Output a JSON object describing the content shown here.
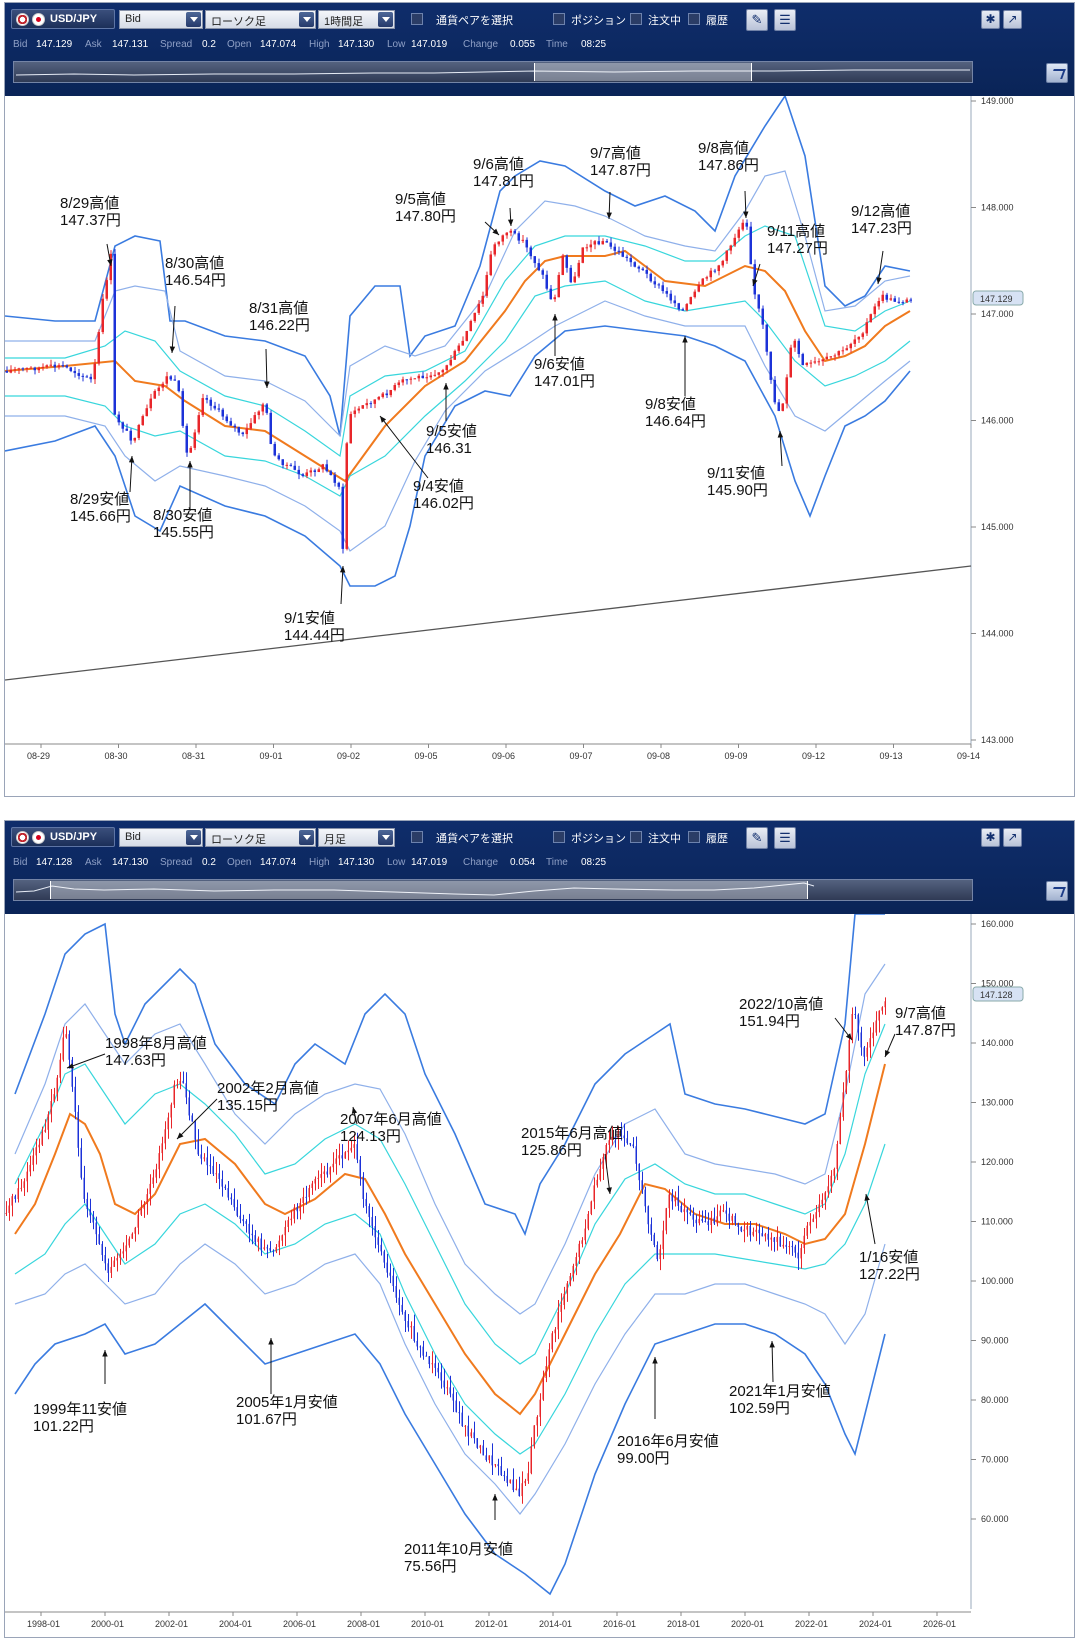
{
  "panels": [
    {
      "id": "hourly",
      "toolbar": {
        "symbol": "USD/JPY",
        "price_type": "Bid",
        "chart_type": "ローソク足",
        "timeframe": "1時間足",
        "pair_select_label": "通貨ペアを選択",
        "position_label": "ポジション",
        "orders_label": "注文中",
        "history_label": "履歴",
        "settings_icon": "gear-icon",
        "expand_icon": "expand-icon"
      },
      "quote": {
        "bid_label": "Bid",
        "bid": "147.129",
        "ask_label": "Ask",
        "ask": "147.131",
        "spread_label": "Spread",
        "spread": "0.2",
        "open_label": "Open",
        "open": "147.074",
        "high_label": "High",
        "high": "147.130",
        "low_label": "Low",
        "low": "147.019",
        "change_label": "Change",
        "change": "0.055",
        "time_label": "Time",
        "time": "08:25"
      },
      "price_tag": "147.129",
      "chart_data": {
        "type": "candlestick",
        "y_ticks": [
          "149.000",
          "148.000",
          "147.000",
          "146.000",
          "145.000",
          "144.000",
          "143.000"
        ],
        "x_ticks": [
          "08-29",
          "08-30",
          "08-31",
          "09-01",
          "09-02",
          "09-05",
          "09-06",
          "09-07",
          "09-08",
          "09-09",
          "09-12",
          "09-13",
          "09-14"
        ],
        "annotations": [
          {
            "lines": [
              "8/29高値",
              "147.37円"
            ]
          },
          {
            "lines": [
              "8/30高値",
              "146.54円"
            ]
          },
          {
            "lines": [
              "8/31高値",
              "146.22円"
            ]
          },
          {
            "lines": [
              "9/5高値",
              "147.80円"
            ]
          },
          {
            "lines": [
              "9/6高値",
              "147.81円"
            ]
          },
          {
            "lines": [
              "9/7高値",
              "147.87円"
            ]
          },
          {
            "lines": [
              "9/8高値",
              "147.86円"
            ]
          },
          {
            "lines": [
              "9/11高値",
              "147.27円"
            ]
          },
          {
            "lines": [
              "9/12高値",
              "147.23円"
            ]
          },
          {
            "lines": [
              "8/29安値",
              "145.66円"
            ]
          },
          {
            "lines": [
              "8/30安値",
              "145.55円"
            ]
          },
          {
            "lines": [
              "9/1安値",
              "144.44円"
            ]
          },
          {
            "lines": [
              "9/4安値",
              "146.02円"
            ]
          },
          {
            "lines": [
              "9/5安値",
              "146.31"
            ]
          },
          {
            "lines": [
              "9/6安値",
              "147.01円"
            ]
          },
          {
            "lines": [
              "9/8安値",
              "146.64円"
            ]
          },
          {
            "lines": [
              "9/11安値",
              "145.90円"
            ]
          }
        ],
        "colors": {
          "up": "#e8262a",
          "down": "#1c32d8",
          "ma": "#f07a1e",
          "band_outer": "#3a7be0",
          "band_mid": "#8fb0ea",
          "band_inner": "#38d6dc",
          "trendline": "#555555"
        }
      }
    },
    {
      "id": "monthly",
      "toolbar": {
        "symbol": "USD/JPY",
        "price_type": "Bid",
        "chart_type": "ローソク足",
        "timeframe": "月足",
        "pair_select_label": "通貨ペアを選択",
        "position_label": "ポジション",
        "orders_label": "注文中",
        "history_label": "履歴",
        "settings_icon": "gear-icon",
        "expand_icon": "expand-icon"
      },
      "quote": {
        "bid_label": "Bid",
        "bid": "147.128",
        "ask_label": "Ask",
        "ask": "147.130",
        "spread_label": "Spread",
        "spread": "0.2",
        "open_label": "Open",
        "open": "147.074",
        "high_label": "High",
        "high": "147.130",
        "low_label": "Low",
        "low": "147.019",
        "change_label": "Change",
        "change": "0.054",
        "time_label": "Time",
        "time": "08:25"
      },
      "price_tag": "147.128",
      "chart_data": {
        "type": "candlestick",
        "y_ticks": [
          "160.000",
          "150.000",
          "140.000",
          "130.000",
          "120.000",
          "110.000",
          "100.000",
          "90.000",
          "80.000",
          "70.000",
          "60.000"
        ],
        "x_ticks": [
          "1998-01",
          "2000-01",
          "2002-01",
          "2004-01",
          "2006-01",
          "2008-01",
          "2010-01",
          "2012-01",
          "2014-01",
          "2016-01",
          "2018-01",
          "2020-01",
          "2022-01",
          "2024-01",
          "2026-01"
        ],
        "annotations": [
          {
            "lines": [
              "1998年8月高値",
              "147.63円"
            ]
          },
          {
            "lines": [
              "2002年2月高値",
              "135.15円"
            ]
          },
          {
            "lines": [
              "2007年6月高値",
              "124.13円"
            ]
          },
          {
            "lines": [
              "2015年6月高値",
              "125.86円"
            ]
          },
          {
            "lines": [
              "2022/10高値",
              "151.94円"
            ]
          },
          {
            "lines": [
              "9/7高値",
              "147.87円"
            ]
          },
          {
            "lines": [
              "1999年11安値",
              "101.22円"
            ]
          },
          {
            "lines": [
              "2005年1月安値",
              "101.67円"
            ]
          },
          {
            "lines": [
              "2011年10月安値",
              "75.56円"
            ]
          },
          {
            "lines": [
              "2016年6月安値",
              "99.00円"
            ]
          },
          {
            "lines": [
              "2021年1月安値",
              "102.59円"
            ]
          },
          {
            "lines": [
              "1/16安値",
              "127.22円"
            ]
          }
        ],
        "colors": {
          "up": "#e8262a",
          "down": "#1c32d8",
          "ma": "#f07a1e",
          "band_outer": "#3a7be0",
          "band_mid": "#8fb0ea",
          "band_inner": "#38d6dc"
        }
      }
    }
  ]
}
